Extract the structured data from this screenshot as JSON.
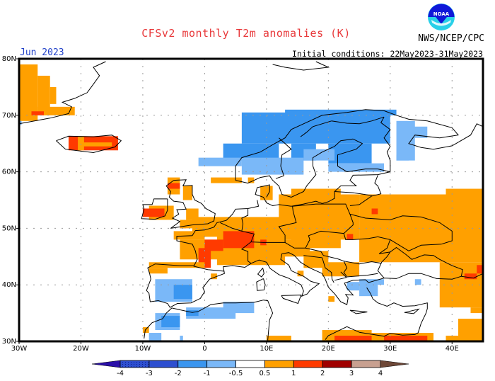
{
  "header": {
    "title": "CFSv2 monthly T2m anomalies (K)",
    "period": "Jun 2023",
    "initial_conditions": "Initial conditions: 22May2023-31May2023",
    "agency": "NWS/NCEP/CPC",
    "logo_text": "NOAA",
    "logo_icon": "noaa-logo-icon"
  },
  "map": {
    "region": "Europe",
    "lon_range": [
      -30,
      45
    ],
    "lat_range": [
      30,
      80
    ],
    "lon_ticks": [
      {
        "value": -30,
        "label": "30W"
      },
      {
        "value": -20,
        "label": "20W"
      },
      {
        "value": -10,
        "label": "10W"
      },
      {
        "value": 0,
        "label": "0"
      },
      {
        "value": 10,
        "label": "10E"
      },
      {
        "value": 20,
        "label": "20E"
      },
      {
        "value": 30,
        "label": "30E"
      },
      {
        "value": 40,
        "label": "40E"
      }
    ],
    "lat_ticks": [
      {
        "value": 30,
        "label": "30N"
      },
      {
        "value": 40,
        "label": "40N"
      },
      {
        "value": 50,
        "label": "50N"
      },
      {
        "value": 60,
        "label": "60N"
      },
      {
        "value": 70,
        "label": "70N"
      },
      {
        "value": 80,
        "label": "80N"
      }
    ],
    "gridlines": true
  },
  "colorbar": {
    "levels": [
      "-4",
      "-3",
      "-2",
      "-1",
      "-0.5",
      "0.5",
      "1",
      "2",
      "3",
      "4"
    ],
    "bins": [
      {
        "range": "< -4",
        "color": "#2a10a8"
      },
      {
        "range": "-4 to -3",
        "color": "#2d4fd0",
        "stippled": true
      },
      {
        "range": "-3 to -2",
        "color": "#2d4fd0"
      },
      {
        "range": "-2 to -1",
        "color": "#3a96f0"
      },
      {
        "range": "-1 to -0.5",
        "color": "#7ab8f8"
      },
      {
        "range": "-0.5 to 0.5",
        "color": "#ffffff"
      },
      {
        "range": "0.5 to 1",
        "color": "#ffa000"
      },
      {
        "range": "1 to 2",
        "color": "#ff3a00"
      },
      {
        "range": "2 to 3",
        "color": "#a00000"
      },
      {
        "range": "3 to 4",
        "color": "#c8a090"
      },
      {
        "range": "> 4",
        "color": "#6e4838"
      }
    ]
  },
  "chart_data": {
    "type": "heatmap",
    "title": "CFSv2 monthly T2m anomalies (K)",
    "subtitle": "Jun 2023",
    "units": "K",
    "xlabel": "Longitude",
    "ylabel": "Latitude",
    "xlim": [
      -30,
      45
    ],
    "ylim": [
      30,
      80
    ],
    "legend": "bottom",
    "category_colors": {
      "c1": "#7ab8f8",
      "c2": "#3a96f0",
      "w1": "#ffa000",
      "w2": "#ff3a00"
    },
    "category_ranges": {
      "c1": "-1 to -0.5",
      "c2": "-2 to -1",
      "w1": "0.5 to 1",
      "w2": "1 to 2"
    },
    "cells": [
      {
        "c": "w1",
        "lon": [
          -30,
          -27
        ],
        "lat": [
          69,
          79
        ]
      },
      {
        "c": "w1",
        "lon": [
          -27,
          -25
        ],
        "lat": [
          70,
          77
        ]
      },
      {
        "c": "w1",
        "lon": [
          -25,
          -24
        ],
        "lat": [
          72,
          75
        ]
      },
      {
        "c": "w1",
        "lon": [
          -27,
          -21
        ],
        "lat": [
          70,
          71.5
        ]
      },
      {
        "c": "w2",
        "lon": [
          -28,
          -26
        ],
        "lat": [
          70,
          70.7
        ]
      },
      {
        "c": "c1",
        "lon": [
          -30,
          -29.6
        ],
        "lat": [
          68.3,
          69
        ]
      },
      {
        "c": "w2",
        "lon": [
          -22,
          -14
        ],
        "lat": [
          63.8,
          66.3
        ]
      },
      {
        "c": "w1",
        "lon": [
          -20,
          -15
        ],
        "lat": [
          64.5,
          65.2
        ]
      },
      {
        "c": "w1",
        "lon": [
          -20.5,
          -19.5
        ],
        "lat": [
          63.8,
          66.3
        ]
      },
      {
        "c": "c2",
        "lon": [
          6,
          30
        ],
        "lat": [
          65,
          70.5
        ]
      },
      {
        "c": "c2",
        "lon": [
          13,
          31
        ],
        "lat": [
          70,
          71
        ]
      },
      {
        "c": "c2",
        "lon": [
          3,
          12
        ],
        "lat": [
          62,
          65
        ]
      },
      {
        "c": "c2",
        "lon": [
          14,
          18
        ],
        "lat": [
          62,
          65
        ]
      },
      {
        "c": "c2",
        "lon": [
          20,
          27
        ],
        "lat": [
          61.5,
          65
        ]
      },
      {
        "c": "c1",
        "lon": [
          -1,
          6
        ],
        "lat": [
          61,
          62.5
        ]
      },
      {
        "c": "c1",
        "lon": [
          6,
          16
        ],
        "lat": [
          59.5,
          62.5
        ]
      },
      {
        "c": "c1",
        "lon": [
          16,
          21
        ],
        "lat": [
          62,
          64
        ]
      },
      {
        "c": "c1",
        "lon": [
          20,
          29
        ],
        "lat": [
          60,
          61.5
        ]
      },
      {
        "c": "c1",
        "lon": [
          31,
          34
        ],
        "lat": [
          62,
          69
        ]
      },
      {
        "c": "c1",
        "lon": [
          33,
          36
        ],
        "lat": [
          66,
          68
        ]
      },
      {
        "c": "c1",
        "lon": [
          31,
          33
        ],
        "lat": [
          62,
          63
        ]
      },
      {
        "c": "w1",
        "lon": [
          1,
          6
        ],
        "lat": [
          58,
          59
        ]
      },
      {
        "c": "w1",
        "lon": [
          7,
          8
        ],
        "lat": [
          58,
          59
        ]
      },
      {
        "c": "w1",
        "lon": [
          9,
          11
        ],
        "lat": [
          55,
          57.5
        ]
      },
      {
        "c": "w1",
        "lon": [
          12,
          14
        ],
        "lat": [
          55,
          56
        ]
      },
      {
        "c": "w1",
        "lon": [
          -6,
          -4
        ],
        "lat": [
          56,
          59
        ]
      },
      {
        "c": "w2",
        "lon": [
          -6,
          -4
        ],
        "lat": [
          57,
          58
        ]
      },
      {
        "c": "w1",
        "lon": [
          -3.5,
          -2
        ],
        "lat": [
          55,
          57.5
        ]
      },
      {
        "c": "w1",
        "lon": [
          -9,
          -5
        ],
        "lat": [
          51.5,
          54
        ]
      },
      {
        "c": "w2",
        "lon": [
          -10,
          -6.5
        ],
        "lat": [
          52,
          53.5
        ]
      },
      {
        "c": "w1",
        "lon": [
          -3,
          -1
        ],
        "lat": [
          51.5,
          53.5
        ]
      },
      {
        "c": "w2",
        "lon": [
          -4,
          -3
        ],
        "lat": [
          50,
          51
        ]
      },
      {
        "c": "w1",
        "lon": [
          -4,
          -1
        ],
        "lat": [
          50,
          51.5
        ]
      },
      {
        "c": "w1",
        "lon": [
          -5,
          0
        ],
        "lat": [
          48,
          49.5
        ]
      },
      {
        "c": "w1",
        "lon": [
          -2,
          13
        ],
        "lat": [
          48.5,
          52
        ]
      },
      {
        "c": "w1",
        "lon": [
          2,
          13
        ],
        "lat": [
          43.5,
          49
        ]
      },
      {
        "c": "w1",
        "lon": [
          -4,
          3
        ],
        "lat": [
          44.5,
          48
        ]
      },
      {
        "c": "w2",
        "lon": [
          3,
          8
        ],
        "lat": [
          46.5,
          49.5
        ]
      },
      {
        "c": "w2",
        "lon": [
          0,
          3
        ],
        "lat": [
          46,
          48
        ]
      },
      {
        "c": "w2",
        "lon": [
          -1,
          1
        ],
        "lat": [
          43,
          46.5
        ]
      },
      {
        "c": "w1",
        "lon": [
          -9,
          0
        ],
        "lat": [
          43,
          44
        ]
      },
      {
        "c": "w1",
        "lon": [
          12,
          25
        ],
        "lat": [
          48,
          56
        ]
      },
      {
        "c": "w1",
        "lon": [
          25,
          45
        ],
        "lat": [
          44,
          56
        ]
      },
      {
        "c": "w1",
        "lon": [
          14,
          22
        ],
        "lat": [
          46.5,
          57
        ]
      },
      {
        "c": "w1",
        "lon": [
          12,
          17
        ],
        "lat": [
          45,
          48
        ]
      },
      {
        "c": "w1",
        "lon": [
          16,
          20
        ],
        "lat": [
          43,
          46
        ]
      },
      {
        "c": "w1",
        "lon": [
          19,
          25
        ],
        "lat": [
          41.5,
          44
        ]
      },
      {
        "c": "w1",
        "lon": [
          39,
          45
        ],
        "lat": [
          55.5,
          57
        ]
      },
      {
        "c": "w2",
        "lon": [
          27,
          28
        ],
        "lat": [
          52.5,
          53.5
        ]
      },
      {
        "c": "w2",
        "lon": [
          23,
          24
        ],
        "lat": [
          48,
          49
        ]
      },
      {
        "c": "w2",
        "lon": [
          9,
          10
        ],
        "lat": [
          47,
          48
        ]
      },
      {
        "c": "w1",
        "lon": [
          38,
          45
        ],
        "lat": [
          36,
          44
        ]
      },
      {
        "c": "w2",
        "lon": [
          42,
          44
        ],
        "lat": [
          41,
          42
        ]
      },
      {
        "c": "w2",
        "lon": [
          44,
          45
        ],
        "lat": [
          42,
          43.5
        ]
      },
      {
        "c": "w1",
        "lon": [
          41,
          45
        ],
        "lat": [
          30,
          34
        ]
      },
      {
        "c": "w1",
        "lon": [
          43,
          45
        ],
        "lat": [
          35,
          36
        ]
      },
      {
        "c": "w1",
        "lon": [
          -9,
          -6
        ],
        "lat": [
          42,
          43
        ]
      },
      {
        "c": "w1",
        "lon": [
          1,
          2
        ],
        "lat": [
          41,
          42
        ]
      },
      {
        "c": "w1",
        "lon": [
          15,
          16
        ],
        "lat": [
          41.5,
          42.5
        ]
      },
      {
        "c": "w1",
        "lon": [
          20,
          21
        ],
        "lat": [
          37,
          38
        ]
      },
      {
        "c": "c1",
        "lon": [
          -8,
          -2
        ],
        "lat": [
          37,
          41
        ]
      },
      {
        "c": "c2",
        "lon": [
          -5,
          -2
        ],
        "lat": [
          37.5,
          40
        ]
      },
      {
        "c": "c1",
        "lon": [
          -8,
          -4
        ],
        "lat": [
          32,
          35
        ]
      },
      {
        "c": "c2",
        "lon": [
          -7,
          -4
        ],
        "lat": [
          32.5,
          34.5
        ]
      },
      {
        "c": "c1",
        "lon": [
          -3,
          5
        ],
        "lat": [
          34,
          36
        ]
      },
      {
        "c": "c2",
        "lon": [
          -3,
          -1
        ],
        "lat": [
          34.5,
          35.5
        ]
      },
      {
        "c": "c1",
        "lon": [
          3,
          8
        ],
        "lat": [
          35,
          37
        ]
      },
      {
        "c": "c1",
        "lon": [
          -9,
          -7
        ],
        "lat": [
          30,
          31.5
        ]
      },
      {
        "c": "c1",
        "lon": [
          -4,
          -3.5
        ],
        "lat": [
          30,
          31
        ]
      },
      {
        "c": "c1",
        "lon": [
          25,
          28
        ],
        "lat": [
          38,
          41
        ]
      },
      {
        "c": "c1",
        "lon": [
          28,
          29
        ],
        "lat": [
          40,
          41
        ]
      },
      {
        "c": "c1",
        "lon": [
          34,
          35
        ],
        "lat": [
          40,
          41
        ]
      },
      {
        "c": "c1",
        "lon": [
          23,
          25
        ],
        "lat": [
          39,
          40.5
        ]
      },
      {
        "c": "w1",
        "lon": [
          10,
          14
        ],
        "lat": [
          30,
          31
        ]
      },
      {
        "c": "w1",
        "lon": [
          19,
          27
        ],
        "lat": [
          30,
          32
        ]
      },
      {
        "c": "w2",
        "lon": [
          21,
          28
        ],
        "lat": [
          30,
          31
        ]
      },
      {
        "c": "w1",
        "lon": [
          27,
          37
        ],
        "lat": [
          30,
          31.5
        ]
      },
      {
        "c": "w2",
        "lon": [
          29,
          36
        ],
        "lat": [
          30,
          31
        ]
      },
      {
        "c": "w1",
        "lon": [
          -10,
          -9
        ],
        "lat": [
          31.5,
          32.5
        ]
      },
      {
        "c": "w1",
        "lon": [
          39,
          45
        ],
        "lat": [
          30,
          31
        ]
      }
    ]
  }
}
